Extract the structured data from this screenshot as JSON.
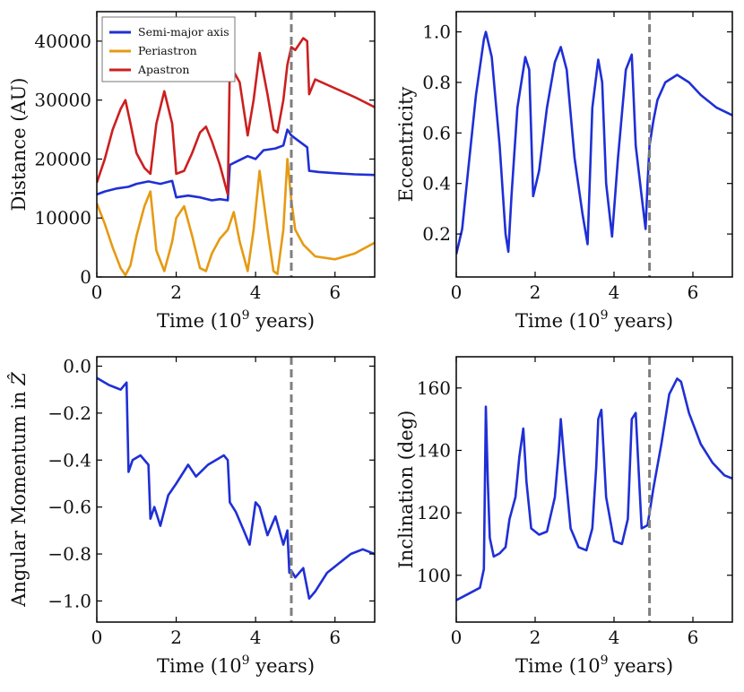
{
  "colors": {
    "blue": "#1f2fd6",
    "orange": "#e69a12",
    "red": "#cc1f1f",
    "event_line": "#7f7f7f",
    "axes": "#000000"
  },
  "chart_data": [
    {
      "id": "distance",
      "type": "line",
      "xlabel": "Time (10^9 years)",
      "xlabel_base": "Time (10",
      "xlabel_sup": "9",
      "xlabel_tail": " years)",
      "ylabel": "Distance (AU)",
      "xlim": [
        0,
        7
      ],
      "ylim": [
        0,
        45000
      ],
      "xticks": [
        0,
        2,
        4,
        6
      ],
      "yticks": [
        0,
        10000,
        20000,
        30000,
        40000
      ],
      "ytick_labels": [
        "0",
        "10000",
        "20000",
        "30000",
        "40000"
      ],
      "vline_x": 4.9,
      "legend": {
        "position": "top-left",
        "entries": [
          "Semi-major axis",
          "Periastron",
          "Apastron"
        ]
      },
      "series": [
        {
          "name": "Semi-major axis",
          "color_key": "blue",
          "x": [
            0,
            0.2,
            0.5,
            0.8,
            1.0,
            1.3,
            1.6,
            1.9,
            2.0,
            2.3,
            2.6,
            2.9,
            3.1,
            3.3,
            3.35,
            3.5,
            3.8,
            4.0,
            4.2,
            4.5,
            4.7,
            4.8,
            4.9,
            5.0,
            5.3,
            5.35,
            5.6,
            6.0,
            6.5,
            7.0
          ],
          "y": [
            14000,
            14500,
            15000,
            15300,
            15800,
            16200,
            15800,
            16300,
            13500,
            13800,
            13500,
            13000,
            13200,
            13000,
            19000,
            19500,
            20500,
            20000,
            21500,
            21800,
            22300,
            25000,
            24000,
            23500,
            22000,
            18000,
            17800,
            17600,
            17400,
            17300
          ]
        },
        {
          "name": "Periastron",
          "color_key": "orange",
          "x": [
            0,
            0.2,
            0.4,
            0.6,
            0.72,
            0.85,
            1.0,
            1.2,
            1.35,
            1.5,
            1.7,
            1.9,
            2.0,
            2.2,
            2.4,
            2.6,
            2.75,
            2.9,
            3.1,
            3.3,
            3.45,
            3.6,
            3.8,
            3.95,
            4.1,
            4.3,
            4.45,
            4.55,
            4.7,
            4.8,
            4.9,
            5.0,
            5.2,
            5.5,
            6.0,
            6.5,
            7.0
          ],
          "y": [
            12500,
            9000,
            5000,
            1500,
            300,
            2000,
            7000,
            12000,
            14500,
            4500,
            1000,
            6000,
            10000,
            12000,
            7000,
            1500,
            1000,
            4000,
            6500,
            8000,
            11000,
            6000,
            1000,
            8000,
            18000,
            8000,
            1000,
            500,
            8000,
            20000,
            13000,
            8000,
            5500,
            3500,
            3000,
            4000,
            5800
          ]
        },
        {
          "name": "Apastron",
          "color_key": "red",
          "x": [
            0,
            0.2,
            0.4,
            0.6,
            0.72,
            0.85,
            1.0,
            1.2,
            1.35,
            1.5,
            1.7,
            1.9,
            2.0,
            2.2,
            2.4,
            2.6,
            2.75,
            2.9,
            3.1,
            3.3,
            3.35,
            3.6,
            3.8,
            3.95,
            4.1,
            4.3,
            4.45,
            4.55,
            4.7,
            4.8,
            4.9,
            5.0,
            5.2,
            5.3,
            5.35,
            5.5,
            6.0,
            6.5,
            7.0
          ],
          "y": [
            16000,
            20000,
            25000,
            28500,
            30000,
            26000,
            21000,
            18500,
            17500,
            26000,
            31500,
            26000,
            17500,
            18000,
            21000,
            24500,
            25500,
            23000,
            19000,
            14000,
            36000,
            33000,
            24000,
            30000,
            38000,
            31000,
            25000,
            24500,
            30000,
            36000,
            39000,
            38500,
            40500,
            40000,
            31000,
            33500,
            32000,
            30500,
            28800
          ]
        }
      ]
    },
    {
      "id": "eccentricity",
      "type": "line",
      "xlabel": "Time (10^9 years)",
      "xlabel_base": "Time (10",
      "xlabel_sup": "9",
      "xlabel_tail": " years)",
      "ylabel": "Eccentricity",
      "xlim": [
        0,
        7
      ],
      "ylim": [
        0.03,
        1.08
      ],
      "xticks": [
        0,
        2,
        4,
        6
      ],
      "yticks": [
        0.2,
        0.4,
        0.6,
        0.8,
        1.0
      ],
      "ytick_labels": [
        "0.2",
        "0.4",
        "0.6",
        "0.8",
        "1.0"
      ],
      "vline_x": 4.9,
      "series": [
        {
          "name": "Eccentricity",
          "color_key": "blue",
          "x": [
            0,
            0.15,
            0.3,
            0.5,
            0.7,
            0.75,
            0.9,
            1.1,
            1.25,
            1.32,
            1.4,
            1.55,
            1.75,
            1.85,
            1.95,
            2.1,
            2.3,
            2.5,
            2.65,
            2.8,
            3.0,
            3.2,
            3.33,
            3.45,
            3.6,
            3.7,
            3.8,
            3.95,
            4.1,
            4.3,
            4.45,
            4.55,
            4.7,
            4.8,
            4.85,
            4.9,
            5.0,
            5.1,
            5.3,
            5.6,
            5.9,
            6.2,
            6.6,
            7.0
          ],
          "y": [
            0.12,
            0.22,
            0.45,
            0.75,
            0.97,
            1.0,
            0.9,
            0.55,
            0.2,
            0.13,
            0.35,
            0.7,
            0.9,
            0.85,
            0.35,
            0.45,
            0.7,
            0.88,
            0.94,
            0.85,
            0.5,
            0.28,
            0.16,
            0.7,
            0.89,
            0.8,
            0.4,
            0.19,
            0.5,
            0.85,
            0.91,
            0.55,
            0.35,
            0.22,
            0.4,
            0.55,
            0.65,
            0.73,
            0.8,
            0.83,
            0.8,
            0.75,
            0.7,
            0.67
          ]
        }
      ]
    },
    {
      "id": "angular-momentum",
      "type": "line",
      "xlabel": "Time (10^9 years)",
      "xlabel_base": "Time (10",
      "xlabel_sup": "9",
      "xlabel_tail": " years)",
      "ylabel": "Angular Momentum in Ẑ",
      "ylabel_base": "Angular Momentum in ",
      "ylabel_symbol": "Ẑ",
      "xlim": [
        0,
        7
      ],
      "ylim": [
        -1.09,
        0.04
      ],
      "xticks": [
        0,
        2,
        4,
        6
      ],
      "yticks": [
        0.0,
        -0.2,
        -0.4,
        -0.6,
        -0.8,
        -1.0
      ],
      "ytick_labels": [
        "0.0",
        "−0.2",
        "−0.4",
        "−0.6",
        "−0.8",
        "−1.0"
      ],
      "vline_x": 4.9,
      "series": [
        {
          "name": "Angular momentum",
          "color_key": "blue",
          "x": [
            0,
            0.3,
            0.6,
            0.75,
            0.8,
            0.9,
            1.1,
            1.3,
            1.35,
            1.45,
            1.6,
            1.8,
            2.0,
            2.3,
            2.5,
            2.8,
            3.0,
            3.2,
            3.3,
            3.35,
            3.5,
            3.7,
            3.85,
            4.0,
            4.1,
            4.3,
            4.5,
            4.7,
            4.8,
            4.85,
            4.9,
            5.0,
            5.2,
            5.35,
            5.5,
            5.8,
            6.1,
            6.4,
            6.7,
            7.0
          ],
          "y": [
            -0.05,
            -0.08,
            -0.1,
            -0.07,
            -0.45,
            -0.4,
            -0.38,
            -0.42,
            -0.65,
            -0.6,
            -0.68,
            -0.55,
            -0.5,
            -0.42,
            -0.47,
            -0.42,
            -0.4,
            -0.38,
            -0.4,
            -0.58,
            -0.62,
            -0.7,
            -0.76,
            -0.58,
            -0.6,
            -0.72,
            -0.64,
            -0.76,
            -0.7,
            -0.88,
            -0.87,
            -0.9,
            -0.86,
            -0.99,
            -0.96,
            -0.88,
            -0.84,
            -0.8,
            -0.78,
            -0.8
          ]
        }
      ]
    },
    {
      "id": "inclination",
      "type": "line",
      "xlabel": "Time (10^9 years)",
      "xlabel_base": "Time (10",
      "xlabel_sup": "9",
      "xlabel_tail": " years)",
      "ylabel": "Inclination (deg)",
      "xlim": [
        0,
        7
      ],
      "ylim": [
        85,
        170
      ],
      "xticks": [
        0,
        2,
        4,
        6
      ],
      "yticks": [
        100,
        120,
        140,
        160
      ],
      "ytick_labels": [
        "100",
        "120",
        "140",
        "160"
      ],
      "vline_x": 4.9,
      "series": [
        {
          "name": "Inclination",
          "color_key": "blue",
          "x": [
            0,
            0.3,
            0.6,
            0.7,
            0.75,
            0.8,
            0.85,
            0.95,
            1.1,
            1.25,
            1.35,
            1.5,
            1.6,
            1.7,
            1.78,
            1.9,
            2.1,
            2.3,
            2.5,
            2.6,
            2.65,
            2.75,
            2.9,
            3.1,
            3.3,
            3.45,
            3.55,
            3.6,
            3.68,
            3.8,
            4.0,
            4.2,
            4.35,
            4.45,
            4.55,
            4.7,
            4.85,
            4.9,
            5.0,
            5.2,
            5.4,
            5.6,
            5.7,
            5.9,
            6.2,
            6.5,
            6.8,
            7.0
          ],
          "y": [
            92,
            94,
            96,
            102,
            154,
            130,
            112,
            106,
            107,
            109,
            118,
            125,
            138,
            147,
            130,
            115,
            113,
            114,
            125,
            140,
            150,
            135,
            115,
            109,
            108,
            115,
            135,
            150,
            153,
            125,
            111,
            110,
            118,
            150,
            152,
            115,
            116,
            120,
            128,
            142,
            158,
            163,
            162,
            152,
            142,
            136,
            132,
            131
          ]
        }
      ]
    }
  ]
}
